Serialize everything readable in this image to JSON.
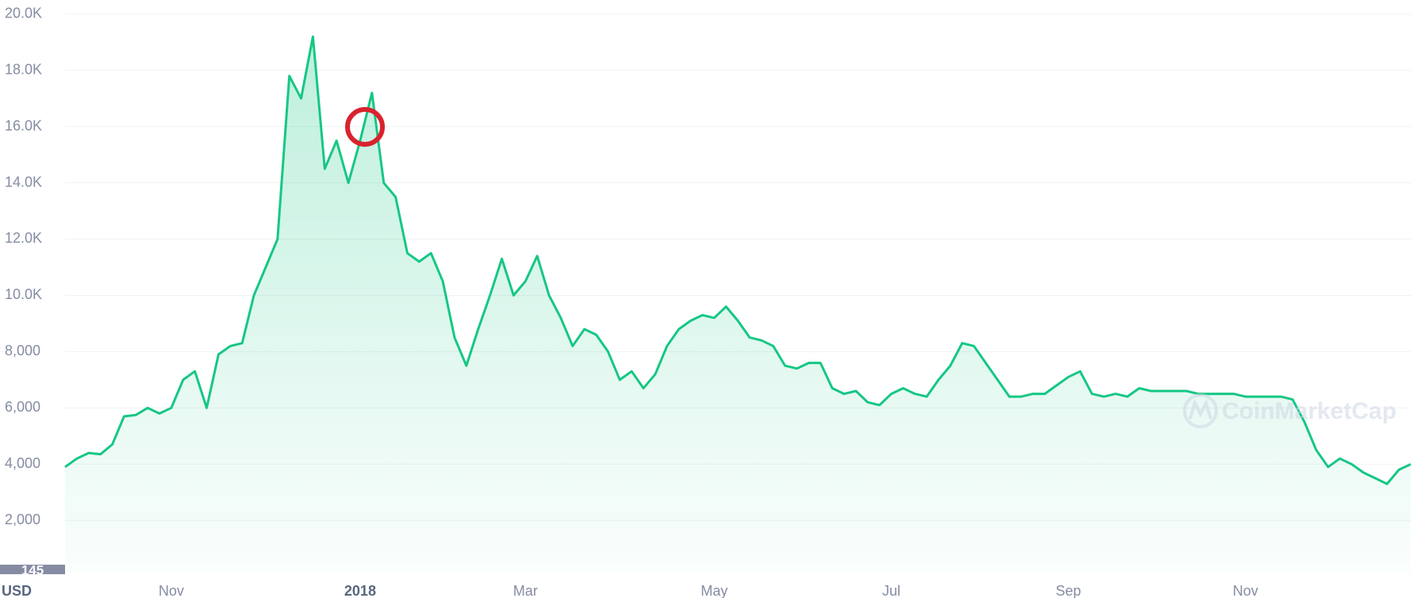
{
  "chart_data": {
    "type": "area",
    "currency": "USD",
    "badge": "145",
    "watermark": "CoinMarketCap",
    "color": "#16c784",
    "grid": true,
    "categories": [
      null,
      null,
      null,
      null,
      null,
      null,
      null,
      null,
      null,
      "Nov",
      null,
      null,
      null,
      null,
      null,
      null,
      null,
      null,
      null,
      null,
      null,
      null,
      null,
      null,
      null,
      "2018",
      null,
      null,
      null,
      null,
      null,
      null,
      null,
      null,
      null,
      null,
      null,
      null,
      null,
      "Mar",
      null,
      null,
      null,
      null,
      null,
      null,
      null,
      null,
      null,
      null,
      null,
      null,
      null,
      null,
      null,
      "May",
      null,
      null,
      null,
      null,
      null,
      null,
      null,
      null,
      null,
      null,
      null,
      null,
      null,
      null,
      "Jul",
      null,
      null,
      null,
      null,
      null,
      null,
      null,
      null,
      null,
      null,
      null,
      null,
      null,
      null,
      "Sep",
      null,
      null,
      null,
      null,
      null,
      null,
      null,
      null,
      null,
      null,
      null,
      null,
      null,
      null,
      "Nov",
      null,
      null,
      null,
      null,
      null,
      null,
      null,
      null,
      null,
      null,
      null,
      null,
      null,
      null
    ],
    "values": [
      3900,
      4200,
      4400,
      4350,
      4700,
      5700,
      5750,
      6000,
      5800,
      6000,
      7000,
      7300,
      6000,
      7900,
      8200,
      8300,
      10000,
      11000,
      12000,
      17800,
      17000,
      19200,
      14500,
      15500,
      14000,
      15500,
      17200,
      14000,
      13500,
      11500,
      11200,
      11500,
      10500,
      8500,
      7500,
      8800,
      10000,
      11300,
      10000,
      10500,
      11400,
      10000,
      9200,
      8200,
      8800,
      8600,
      8000,
      7000,
      7300,
      6700,
      7200,
      8200,
      8800,
      9100,
      9300,
      9200,
      9600,
      9100,
      8500,
      8400,
      8200,
      7500,
      7400,
      7600,
      7600,
      6700,
      6500,
      6600,
      6200,
      6100,
      6500,
      6700,
      6500,
      6400,
      7000,
      7500,
      8300,
      8200,
      7600,
      7000,
      6400,
      6400,
      6500,
      6500,
      6800,
      7100,
      7300,
      6500,
      6400,
      6500,
      6400,
      6700,
      6600,
      6600,
      6600,
      6600,
      6500,
      6500,
      6500,
      6500,
      6400,
      6400,
      6400,
      6400,
      6300,
      5500,
      4500,
      3900,
      4200,
      4000,
      3700,
      3500,
      3300,
      3800,
      4000
    ],
    "ylim": [
      145,
      20500
    ],
    "yticks": [
      {
        "value": 2000,
        "label": "2,000"
      },
      {
        "value": 4000,
        "label": "4,000"
      },
      {
        "value": 6000,
        "label": "6,000"
      },
      {
        "value": 8000,
        "label": "8,000"
      },
      {
        "value": 10000,
        "label": "10.0K"
      },
      {
        "value": 12000,
        "label": "12.0K"
      },
      {
        "value": 14000,
        "label": "14.0K"
      },
      {
        "value": 16000,
        "label": "16.0K"
      },
      {
        "value": 18000,
        "label": "18.0K"
      },
      {
        "value": 20000,
        "label": "20.0K"
      }
    ]
  }
}
